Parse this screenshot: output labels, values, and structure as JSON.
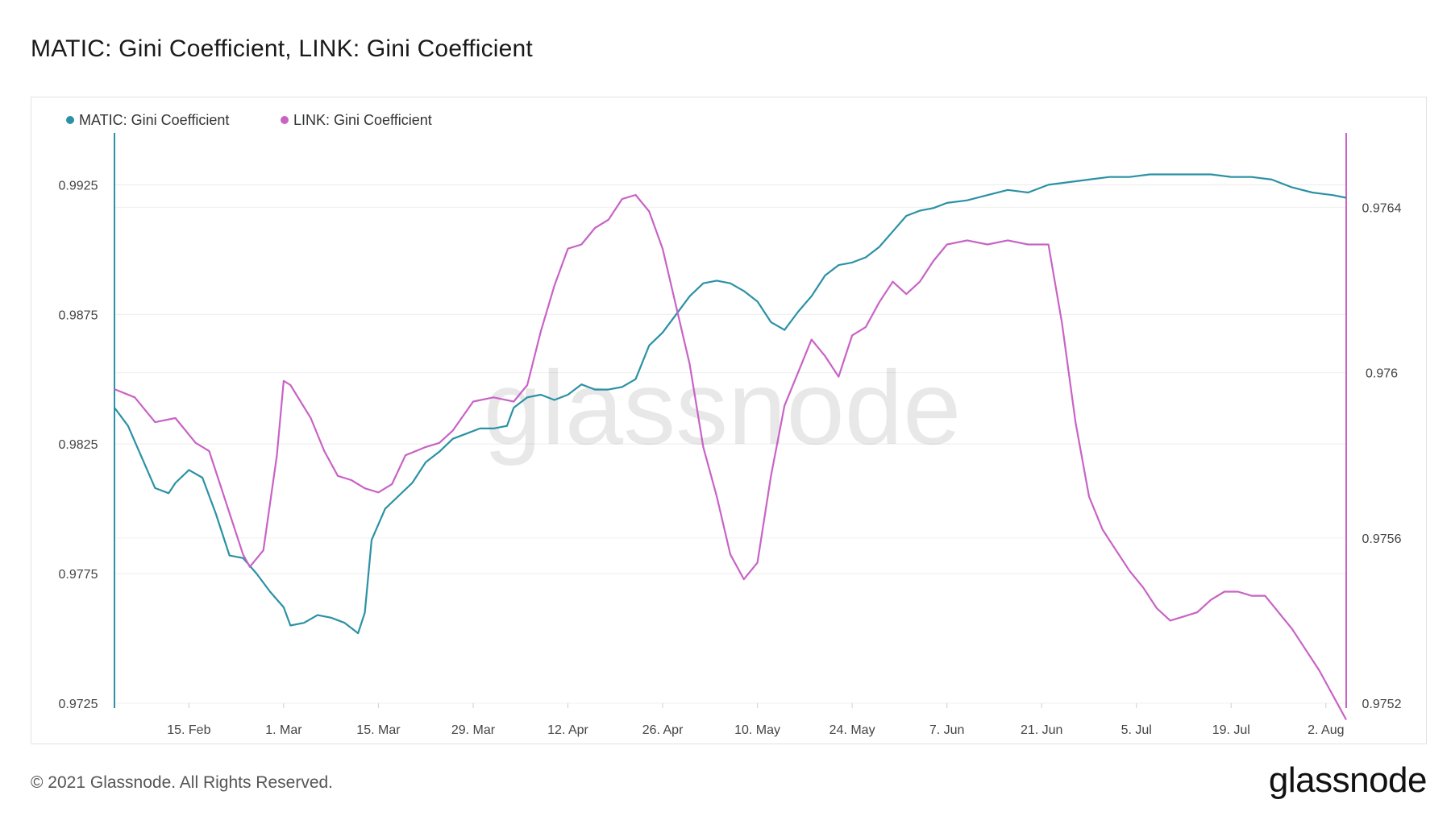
{
  "title": "MATIC: Gini Coefficient, LINK: Gini Coefficient",
  "footer": {
    "copyright": "© 2021 Glassnode. All Rights Reserved.",
    "logo": "glassnode"
  },
  "watermark": "glassnode",
  "chart_data": {
    "type": "line",
    "title": "MATIC: Gini Coefficient, LINK: Gini Coefficient",
    "xlabel": "",
    "legend_placement": "top-left",
    "grid": true,
    "x_start": "2021-02-04",
    "x_end": "2021-08-05",
    "x_tick_labels": [
      "15. Feb",
      "1. Mar",
      "15. Mar",
      "29. Mar",
      "12. Apr",
      "26. Apr",
      "10. May",
      "24. May",
      "7. Jun",
      "21. Jun",
      "5. Jul",
      "19. Jul",
      "2. Aug"
    ],
    "x_tick_dates": [
      "2021-02-15",
      "2021-03-01",
      "2021-03-15",
      "2021-03-29",
      "2021-04-12",
      "2021-04-26",
      "2021-05-10",
      "2021-05-24",
      "2021-06-07",
      "2021-06-21",
      "2021-07-05",
      "2021-07-19",
      "2021-08-02"
    ],
    "y_left": {
      "ylim": [
        0.9725,
        0.9945
      ],
      "ticks": [
        "0.9725",
        "0.9775",
        "0.9825",
        "0.9875",
        "0.9925"
      ]
    },
    "y_right": {
      "ylim": [
        0.9752,
        0.97658
      ],
      "ticks": [
        "0.9752",
        "0.9756",
        "0.976",
        "0.9764"
      ]
    },
    "series": [
      {
        "name": "MATIC: Gini Coefficient",
        "axis": "left",
        "color": "#2b91a4",
        "points": [
          [
            "2021-02-04",
            0.9839
          ],
          [
            "2021-02-06",
            0.9832
          ],
          [
            "2021-02-08",
            0.982
          ],
          [
            "2021-02-10",
            0.9808
          ],
          [
            "2021-02-12",
            0.9806
          ],
          [
            "2021-02-13",
            0.981
          ],
          [
            "2021-02-15",
            0.9815
          ],
          [
            "2021-02-17",
            0.9812
          ],
          [
            "2021-02-19",
            0.9798
          ],
          [
            "2021-02-21",
            0.9782
          ],
          [
            "2021-02-23",
            0.9781
          ],
          [
            "2021-02-25",
            0.9775
          ],
          [
            "2021-02-27",
            0.9768
          ],
          [
            "2021-03-01",
            0.9762
          ],
          [
            "2021-03-02",
            0.9755
          ],
          [
            "2021-03-04",
            0.9756
          ],
          [
            "2021-03-06",
            0.9759
          ],
          [
            "2021-03-08",
            0.9758
          ],
          [
            "2021-03-10",
            0.9756
          ],
          [
            "2021-03-12",
            0.9752
          ],
          [
            "2021-03-13",
            0.976
          ],
          [
            "2021-03-14",
            0.9788
          ],
          [
            "2021-03-16",
            0.98
          ],
          [
            "2021-03-18",
            0.9805
          ],
          [
            "2021-03-20",
            0.981
          ],
          [
            "2021-03-22",
            0.9818
          ],
          [
            "2021-03-24",
            0.9822
          ],
          [
            "2021-03-26",
            0.9827
          ],
          [
            "2021-03-28",
            0.9829
          ],
          [
            "2021-03-30",
            0.9831
          ],
          [
            "2021-04-01",
            0.9831
          ],
          [
            "2021-04-03",
            0.9832
          ],
          [
            "2021-04-04",
            0.9839
          ],
          [
            "2021-04-06",
            0.9843
          ],
          [
            "2021-04-08",
            0.9844
          ],
          [
            "2021-04-10",
            0.9842
          ],
          [
            "2021-04-12",
            0.9844
          ],
          [
            "2021-04-14",
            0.9848
          ],
          [
            "2021-04-16",
            0.9846
          ],
          [
            "2021-04-18",
            0.9846
          ],
          [
            "2021-04-20",
            0.9847
          ],
          [
            "2021-04-22",
            0.985
          ],
          [
            "2021-04-24",
            0.9863
          ],
          [
            "2021-04-26",
            0.9868
          ],
          [
            "2021-04-28",
            0.9875
          ],
          [
            "2021-04-30",
            0.9882
          ],
          [
            "2021-05-02",
            0.9887
          ],
          [
            "2021-05-04",
            0.9888
          ],
          [
            "2021-05-06",
            0.9887
          ],
          [
            "2021-05-08",
            0.9884
          ],
          [
            "2021-05-10",
            0.988
          ],
          [
            "2021-05-12",
            0.9872
          ],
          [
            "2021-05-14",
            0.9869
          ],
          [
            "2021-05-16",
            0.9876
          ],
          [
            "2021-05-18",
            0.9882
          ],
          [
            "2021-05-20",
            0.989
          ],
          [
            "2021-05-22",
            0.9894
          ],
          [
            "2021-05-24",
            0.9895
          ],
          [
            "2021-05-26",
            0.9897
          ],
          [
            "2021-05-28",
            0.9901
          ],
          [
            "2021-05-30",
            0.9907
          ],
          [
            "2021-06-01",
            0.9913
          ],
          [
            "2021-06-03",
            0.9915
          ],
          [
            "2021-06-05",
            0.9916
          ],
          [
            "2021-06-07",
            0.9918
          ],
          [
            "2021-06-10",
            0.9919
          ],
          [
            "2021-06-13",
            0.9921
          ],
          [
            "2021-06-16",
            0.9923
          ],
          [
            "2021-06-19",
            0.9922
          ],
          [
            "2021-06-22",
            0.9925
          ],
          [
            "2021-06-25",
            0.9926
          ],
          [
            "2021-06-28",
            0.9927
          ],
          [
            "2021-07-01",
            0.9928
          ],
          [
            "2021-07-04",
            0.9928
          ],
          [
            "2021-07-07",
            0.9929
          ],
          [
            "2021-07-10",
            0.9929
          ],
          [
            "2021-07-13",
            0.9929
          ],
          [
            "2021-07-16",
            0.9929
          ],
          [
            "2021-07-19",
            0.9928
          ],
          [
            "2021-07-22",
            0.9928
          ],
          [
            "2021-07-25",
            0.9927
          ],
          [
            "2021-07-28",
            0.9924
          ],
          [
            "2021-07-31",
            0.9922
          ],
          [
            "2021-08-03",
            0.9921
          ],
          [
            "2021-08-05",
            0.992
          ]
        ]
      },
      {
        "name": "LINK: Gini Coefficient",
        "axis": "right",
        "color": "#c863c5",
        "points": [
          [
            "2021-02-04",
            0.97596
          ],
          [
            "2021-02-07",
            0.97594
          ],
          [
            "2021-02-10",
            0.97588
          ],
          [
            "2021-02-13",
            0.97589
          ],
          [
            "2021-02-16",
            0.97583
          ],
          [
            "2021-02-18",
            0.97581
          ],
          [
            "2021-02-21",
            0.97566
          ],
          [
            "2021-02-23",
            0.97556
          ],
          [
            "2021-02-24",
            0.97553
          ],
          [
            "2021-02-26",
            0.97557
          ],
          [
            "2021-02-28",
            0.9758
          ],
          [
            "2021-03-01",
            0.97598
          ],
          [
            "2021-03-02",
            0.97597
          ],
          [
            "2021-03-05",
            0.97589
          ],
          [
            "2021-03-07",
            0.97581
          ],
          [
            "2021-03-09",
            0.97575
          ],
          [
            "2021-03-11",
            0.97574
          ],
          [
            "2021-03-13",
            0.97572
          ],
          [
            "2021-03-15",
            0.97571
          ],
          [
            "2021-03-17",
            0.97573
          ],
          [
            "2021-03-19",
            0.9758
          ],
          [
            "2021-03-22",
            0.97582
          ],
          [
            "2021-03-24",
            0.97583
          ],
          [
            "2021-03-26",
            0.97586
          ],
          [
            "2021-03-29",
            0.97593
          ],
          [
            "2021-04-01",
            0.97594
          ],
          [
            "2021-04-04",
            0.97593
          ],
          [
            "2021-04-06",
            0.97597
          ],
          [
            "2021-04-08",
            0.9761
          ],
          [
            "2021-04-10",
            0.97621
          ],
          [
            "2021-04-12",
            0.9763
          ],
          [
            "2021-04-14",
            0.97631
          ],
          [
            "2021-04-16",
            0.97635
          ],
          [
            "2021-04-18",
            0.97637
          ],
          [
            "2021-04-20",
            0.97642
          ],
          [
            "2021-04-22",
            0.97643
          ],
          [
            "2021-04-24",
            0.97639
          ],
          [
            "2021-04-26",
            0.9763
          ],
          [
            "2021-04-28",
            0.97616
          ],
          [
            "2021-04-30",
            0.97602
          ],
          [
            "2021-05-02",
            0.97582
          ],
          [
            "2021-05-04",
            0.9757
          ],
          [
            "2021-05-06",
            0.97556
          ],
          [
            "2021-05-08",
            0.9755
          ],
          [
            "2021-05-10",
            0.97554
          ],
          [
            "2021-05-12",
            0.97575
          ],
          [
            "2021-05-14",
            0.97592
          ],
          [
            "2021-05-16",
            0.976
          ],
          [
            "2021-05-18",
            0.97608
          ],
          [
            "2021-05-20",
            0.97604
          ],
          [
            "2021-05-22",
            0.97599
          ],
          [
            "2021-05-24",
            0.97609
          ],
          [
            "2021-05-26",
            0.97611
          ],
          [
            "2021-05-28",
            0.97617
          ],
          [
            "2021-05-30",
            0.97622
          ],
          [
            "2021-06-01",
            0.97619
          ],
          [
            "2021-06-03",
            0.97622
          ],
          [
            "2021-06-05",
            0.97627
          ],
          [
            "2021-06-07",
            0.97631
          ],
          [
            "2021-06-10",
            0.97632
          ],
          [
            "2021-06-13",
            0.97631
          ],
          [
            "2021-06-16",
            0.97632
          ],
          [
            "2021-06-19",
            0.97631
          ],
          [
            "2021-06-22",
            0.97631
          ],
          [
            "2021-06-24",
            0.97612
          ],
          [
            "2021-06-26",
            0.97588
          ],
          [
            "2021-06-28",
            0.9757
          ],
          [
            "2021-06-30",
            0.97562
          ],
          [
            "2021-07-02",
            0.97557
          ],
          [
            "2021-07-04",
            0.97552
          ],
          [
            "2021-07-06",
            0.97548
          ],
          [
            "2021-07-08",
            0.97543
          ],
          [
            "2021-07-10",
            0.9754
          ],
          [
            "2021-07-12",
            0.97541
          ],
          [
            "2021-07-14",
            0.97542
          ],
          [
            "2021-07-16",
            0.97545
          ],
          [
            "2021-07-18",
            0.97547
          ],
          [
            "2021-07-20",
            0.97547
          ],
          [
            "2021-07-22",
            0.97546
          ],
          [
            "2021-07-24",
            0.97546
          ],
          [
            "2021-07-26",
            0.97542
          ],
          [
            "2021-07-28",
            0.97538
          ],
          [
            "2021-07-30",
            0.97533
          ],
          [
            "2021-08-01",
            0.97528
          ],
          [
            "2021-08-03",
            0.97522
          ],
          [
            "2021-08-05",
            0.97516
          ]
        ]
      }
    ]
  }
}
